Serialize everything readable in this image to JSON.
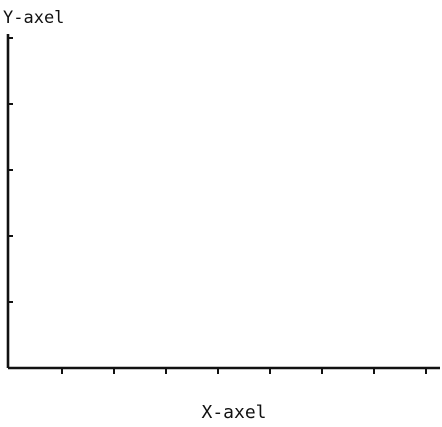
{
  "chart_data": {
    "type": "line",
    "title": "",
    "xlabel": "X-axel",
    "ylabel": "Y-axel",
    "x_tick_count": 9,
    "y_tick_count": 5,
    "x_tick_labels": [],
    "y_tick_labels": [],
    "series": [],
    "grid": false,
    "legend": "none",
    "colors": {
      "axis": "#111111",
      "background": "#ffffff"
    }
  }
}
